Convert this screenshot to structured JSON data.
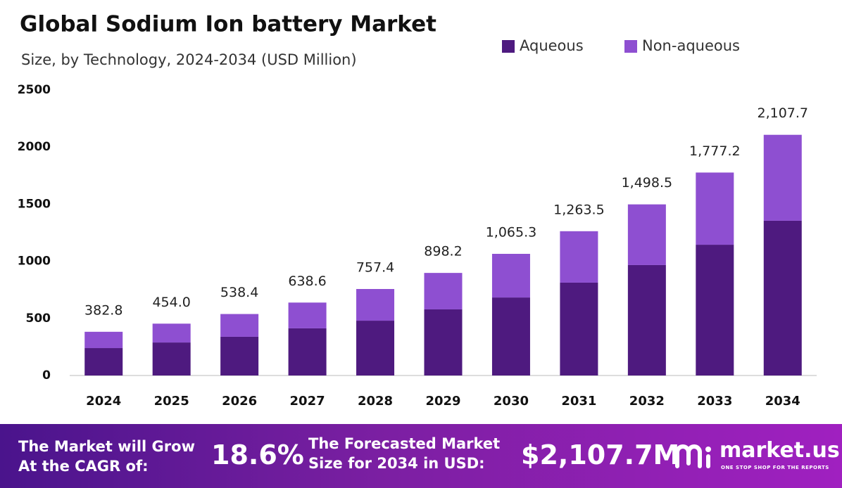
{
  "chart_data": {
    "type": "stacked_bar",
    "title": "Global Sodium Ion battery Market",
    "subtitle": "Size, by Technology, 2024-2034 (USD Million)",
    "categories": [
      "2024",
      "2025",
      "2026",
      "2027",
      "2028",
      "2029",
      "2030",
      "2031",
      "2032",
      "2033",
      "2034"
    ],
    "series": [
      {
        "name": "Aqueous",
        "color": "#4e1a7f",
        "values": [
          240,
          289,
          339,
          413,
          480,
          579,
          683,
          813,
          967,
          1145,
          1355
        ]
      },
      {
        "name": "Non-aqueous",
        "color": "#8e4fd1",
        "values": [
          142.8,
          165,
          199.4,
          225.6,
          277.4,
          319.2,
          382.3,
          450.5,
          531.5,
          632.2,
          752.7
        ]
      }
    ],
    "totals": [
      382.8,
      454.0,
      538.4,
      638.6,
      757.4,
      898.2,
      1065.3,
      1263.5,
      1498.5,
      1777.2,
      2107.7
    ],
    "total_labels": [
      "382.8",
      "454.0",
      "538.4",
      "638.6",
      "757.4",
      "898.2",
      "1,065.3",
      "1,263.5",
      "1,498.5",
      "1,777.2",
      "2,107.7"
    ],
    "ylim": [
      0,
      2500
    ],
    "yticks": [
      0,
      500,
      1000,
      1500,
      2000,
      2500
    ],
    "grid": false,
    "legend": "top-right"
  },
  "footer": {
    "cagr_text": [
      "The Market will Grow",
      "At the CAGR of:"
    ],
    "cagr_value": "18.6%",
    "forecast_text": [
      "The Forecasted Market",
      "Size for 2034 in USD:"
    ],
    "forecast_value": "$2,107.7M",
    "brand": "market.us",
    "tagline": "ONE STOP SHOP FOR THE REPORTS"
  }
}
